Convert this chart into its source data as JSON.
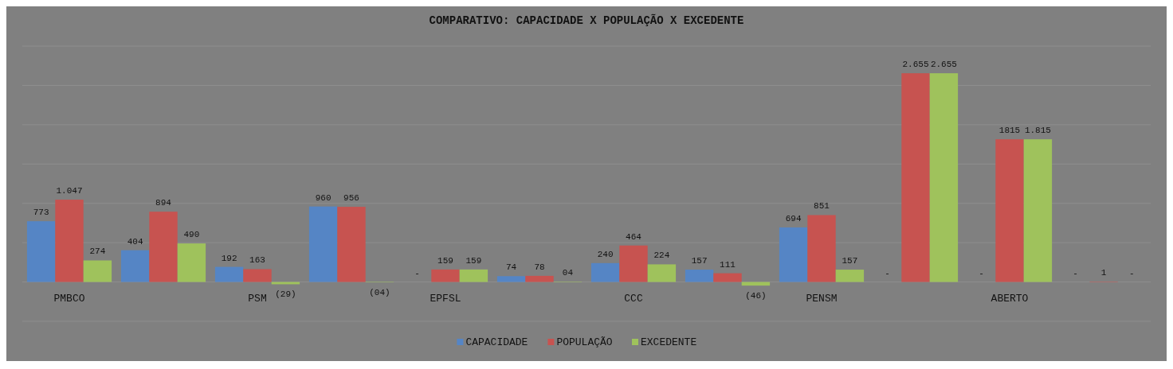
{
  "chart_data": {
    "type": "bar",
    "title": "COMPARATIVO: CAPACIDADE X POPULAÇÃO X EXCEDENTE",
    "categories": [
      "PMBCO",
      null,
      "PSM",
      null,
      "EPFSL",
      null,
      "CCC",
      null,
      "PENSM",
      null,
      "ABERTO",
      null
    ],
    "series": [
      {
        "name": "CAPACIDADE",
        "color": "#5585c5",
        "values": [
          773,
          404,
          192,
          960,
          null,
          74,
          240,
          157,
          694,
          null,
          null,
          null
        ],
        "value_labels": [
          "773",
          "404",
          "192",
          "960",
          "-",
          "74",
          "240",
          "157",
          "694",
          "-",
          "-",
          "-"
        ]
      },
      {
        "name": "POPULAÇÃO",
        "color": "#c75350",
        "values": [
          1047,
          894,
          163,
          956,
          159,
          78,
          464,
          111,
          851,
          2655,
          1815,
          1
        ],
        "value_labels": [
          "1.047",
          "894",
          "163",
          "956",
          "159",
          "78",
          "464",
          "111",
          "851",
          "2.655",
          "1815",
          "1"
        ]
      },
      {
        "name": "EXCEDENTE",
        "color": "#9fc25c",
        "values": [
          274,
          490,
          -29,
          -4,
          159,
          4,
          224,
          -46,
          157,
          2655,
          1815,
          null
        ],
        "value_labels": [
          "274",
          "490",
          "(29)",
          "(04)",
          "159",
          "04",
          "224",
          "(46)",
          "157",
          "2.655",
          "1.815",
          "-"
        ]
      }
    ],
    "ylim": [
      -500,
      3000
    ],
    "yticks": [
      {
        "value": -500,
        "label": null
      },
      {
        "value": 0,
        "label": null
      },
      {
        "value": 500,
        "label": null
      },
      {
        "value": 1000,
        "label": null
      },
      {
        "value": 1500,
        "label": null
      },
      {
        "value": 2000,
        "label": null
      },
      {
        "value": 2500,
        "label": null
      },
      {
        "value": 3000,
        "label": null
      }
    ],
    "tick_labels": "x",
    "grid": "y",
    "legend": "bottom"
  }
}
